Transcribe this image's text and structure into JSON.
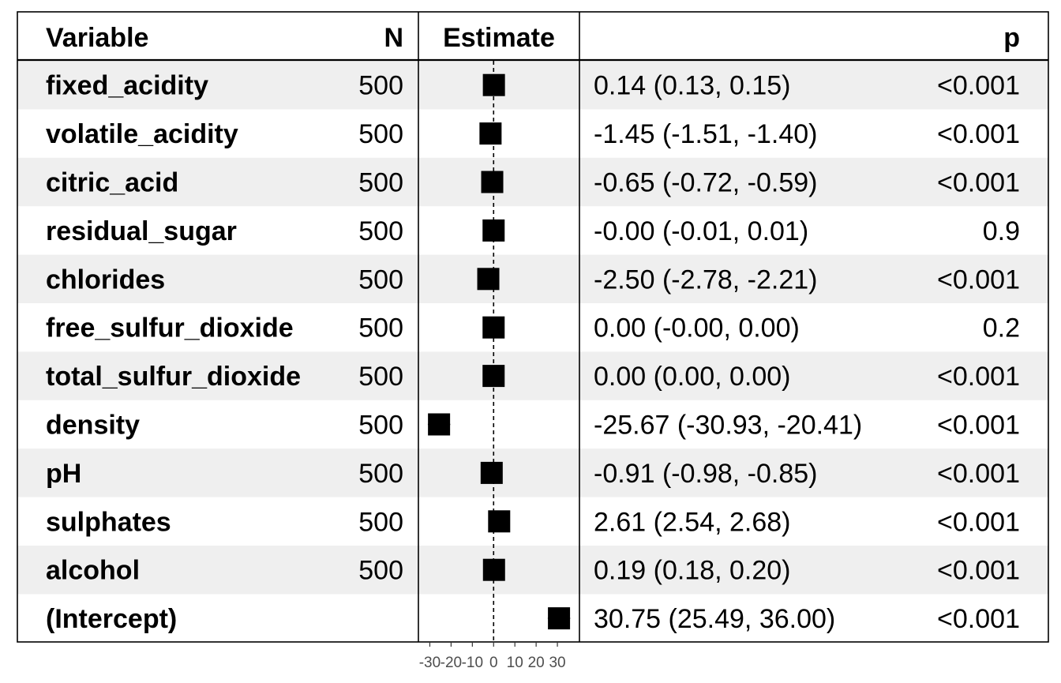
{
  "headers": {
    "variable": "Variable",
    "n": "N",
    "estimate": "Estimate",
    "ci": "",
    "p": "p"
  },
  "colors": {
    "stripe": "#efefef",
    "marker": "#000000",
    "border": "#000000",
    "ref_line": "#000000",
    "tick_text": "#4d4d4d"
  },
  "chart_data": {
    "type": "scatter",
    "title": "",
    "xlabel": "",
    "ylabel": "",
    "xlim": [
      -35,
      40
    ],
    "reference_line": 0,
    "x_ticks": [
      -30,
      -20,
      -10,
      0,
      10,
      20,
      30
    ],
    "x_tick_labels": [
      "-30",
      "-20",
      "-10",
      "0",
      "10",
      "20",
      "30"
    ],
    "categories": [
      "fixed_acidity",
      "volatile_acidity",
      "citric_acid",
      "residual_sugar",
      "chlorides",
      "free_sulfur_dioxide",
      "total_sulfur_dioxide",
      "density",
      "pH",
      "sulphates",
      "alcohol",
      "(Intercept)"
    ],
    "rows": [
      {
        "variable": "fixed_acidity",
        "n": "500",
        "estimate": 0.14,
        "lower": 0.13,
        "upper": 0.15,
        "ci_text": "0.14 (0.13, 0.15)",
        "p": "<0.001"
      },
      {
        "variable": "volatile_acidity",
        "n": "500",
        "estimate": -1.45,
        "lower": -1.51,
        "upper": -1.4,
        "ci_text": "-1.45 (-1.51, -1.40)",
        "p": "<0.001"
      },
      {
        "variable": "citric_acid",
        "n": "500",
        "estimate": -0.65,
        "lower": -0.72,
        "upper": -0.59,
        "ci_text": "-0.65 (-0.72, -0.59)",
        "p": "<0.001"
      },
      {
        "variable": "residual_sugar",
        "n": "500",
        "estimate": -0.0,
        "lower": -0.01,
        "upper": 0.01,
        "ci_text": "-0.00 (-0.01, 0.01)",
        "p": "0.9"
      },
      {
        "variable": "chlorides",
        "n": "500",
        "estimate": -2.5,
        "lower": -2.78,
        "upper": -2.21,
        "ci_text": "-2.50 (-2.78, -2.21)",
        "p": "<0.001"
      },
      {
        "variable": "free_sulfur_dioxide",
        "n": "500",
        "estimate": 0.0,
        "lower": -0.0,
        "upper": 0.0,
        "ci_text": "0.00 (-0.00, 0.00)",
        "p": "0.2"
      },
      {
        "variable": "total_sulfur_dioxide",
        "n": "500",
        "estimate": 0.0,
        "lower": 0.0,
        "upper": 0.0,
        "ci_text": "0.00 (0.00, 0.00)",
        "p": "<0.001"
      },
      {
        "variable": "density",
        "n": "500",
        "estimate": -25.67,
        "lower": -30.93,
        "upper": -20.41,
        "ci_text": "-25.67 (-30.93, -20.41)",
        "p": "<0.001"
      },
      {
        "variable": "pH",
        "n": "500",
        "estimate": -0.91,
        "lower": -0.98,
        "upper": -0.85,
        "ci_text": "-0.91 (-0.98, -0.85)",
        "p": "<0.001"
      },
      {
        "variable": "sulphates",
        "n": "500",
        "estimate": 2.61,
        "lower": 2.54,
        "upper": 2.68,
        "ci_text": "2.61 (2.54, 2.68)",
        "p": "<0.001"
      },
      {
        "variable": "alcohol",
        "n": "500",
        "estimate": 0.19,
        "lower": 0.18,
        "upper": 0.2,
        "ci_text": "0.19 (0.18, 0.20)",
        "p": "<0.001"
      },
      {
        "variable": "(Intercept)",
        "n": "",
        "estimate": 30.75,
        "lower": 25.49,
        "upper": 36.0,
        "ci_text": "30.75 (25.49, 36.00)",
        "p": "<0.001"
      }
    ]
  }
}
